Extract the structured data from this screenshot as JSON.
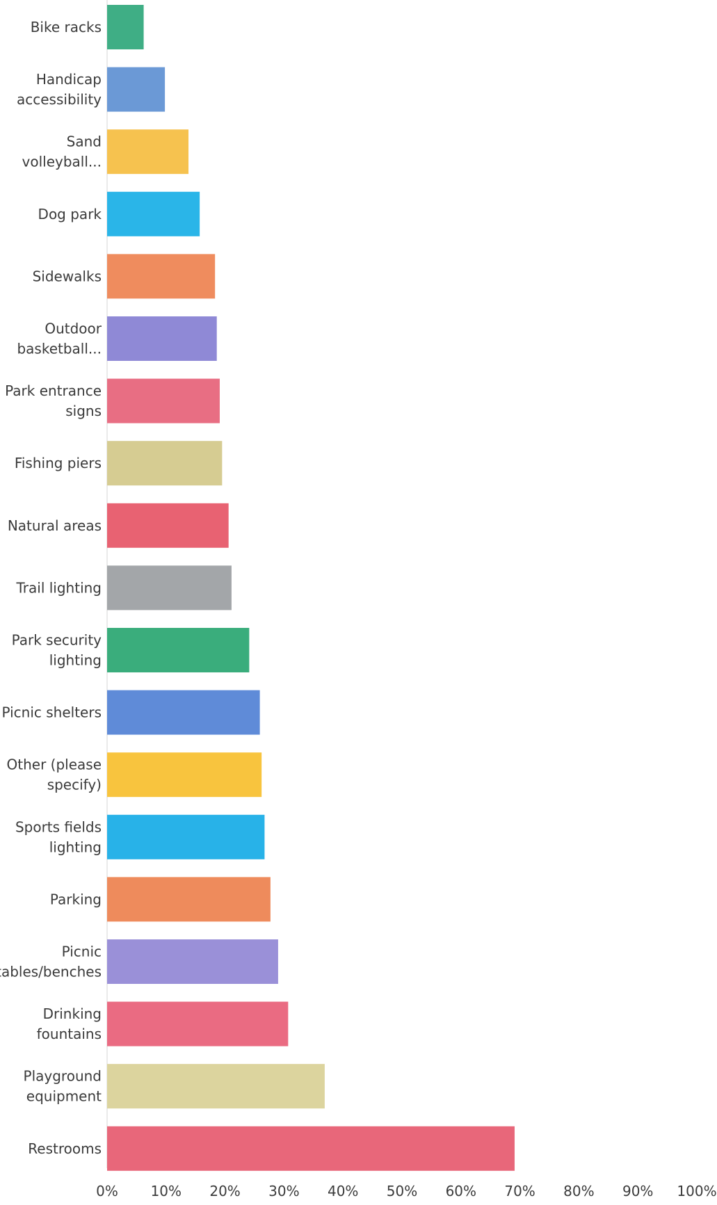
{
  "chart_data": {
    "type": "bar",
    "orientation": "horizontal",
    "grid": false,
    "xlim": [
      0,
      100
    ],
    "x_ticks": [
      "0%",
      "10%",
      "20%",
      "30%",
      "40%",
      "50%",
      "60%",
      "70%",
      "80%",
      "90%",
      "100%"
    ],
    "categories": [
      {
        "lines": [
          "Bike racks"
        ],
        "value": 6.2,
        "color": "#3fae85"
      },
      {
        "lines": [
          "Handicap",
          "accessibility"
        ],
        "value": 9.8,
        "color": "#6b99d6"
      },
      {
        "lines": [
          "Sand",
          "volleyball..."
        ],
        "value": 13.8,
        "color": "#f6c24f"
      },
      {
        "lines": [
          "Dog park"
        ],
        "value": 15.7,
        "color": "#2ab5e8"
      },
      {
        "lines": [
          "Sidewalks"
        ],
        "value": 18.3,
        "color": "#ef8c5e"
      },
      {
        "lines": [
          "Outdoor",
          "basketball..."
        ],
        "value": 18.6,
        "color": "#8f89d6"
      },
      {
        "lines": [
          "Park entrance",
          "signs"
        ],
        "value": 19.1,
        "color": "#e86e83"
      },
      {
        "lines": [
          "Fishing piers"
        ],
        "value": 19.5,
        "color": "#d6cc92"
      },
      {
        "lines": [
          "Natural areas"
        ],
        "value": 20.6,
        "color": "#e86272"
      },
      {
        "lines": [
          "Trail lighting"
        ],
        "value": 21.1,
        "color": "#a3a6a9"
      },
      {
        "lines": [
          "Park security",
          "lighting"
        ],
        "value": 24.1,
        "color": "#3aad7c"
      },
      {
        "lines": [
          "Picnic shelters"
        ],
        "value": 25.9,
        "color": "#5f8bd8"
      },
      {
        "lines": [
          "Other (please",
          "specify)"
        ],
        "value": 26.2,
        "color": "#f8c43e"
      },
      {
        "lines": [
          "Sports fields",
          "lighting"
        ],
        "value": 26.7,
        "color": "#28b2e8"
      },
      {
        "lines": [
          "Parking"
        ],
        "value": 27.7,
        "color": "#ee8b5c"
      },
      {
        "lines": [
          "Picnic",
          "tables/benches"
        ],
        "value": 29.0,
        "color": "#9a90d8"
      },
      {
        "lines": [
          "Drinking",
          "fountains"
        ],
        "value": 30.7,
        "color": "#ea6b82"
      },
      {
        "lines": [
          "Playground",
          "equipment"
        ],
        "value": 36.9,
        "color": "#dcd49e"
      },
      {
        "lines": [
          "Restrooms"
        ],
        "value": 69.1,
        "color": "#e8677a"
      }
    ]
  }
}
